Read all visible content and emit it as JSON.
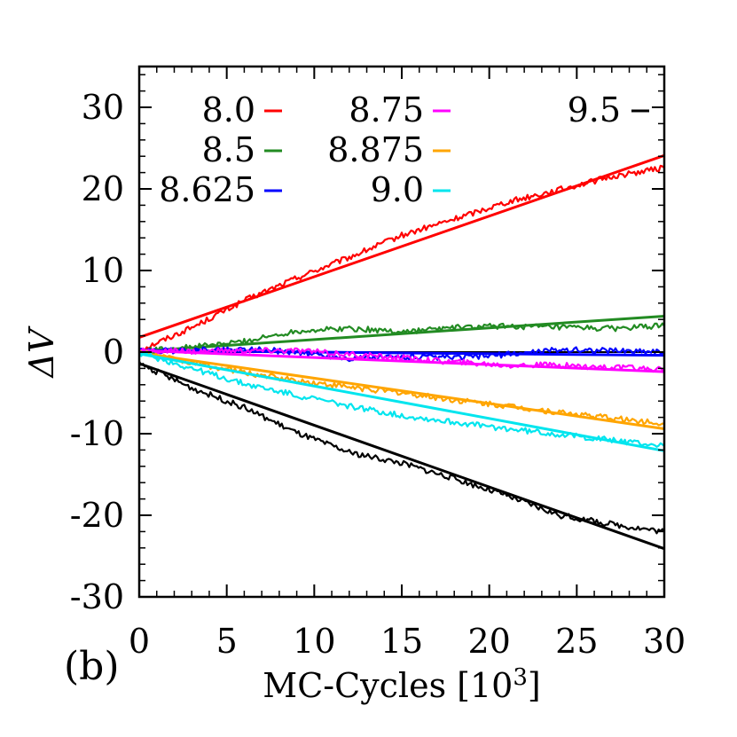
{
  "chart_data": {
    "type": "line",
    "panel_label": "(b)",
    "xlabel": "MC-Cycles [10",
    "xlabel_sup": "3",
    "xlabel_suffix": "]",
    "ylabel": "ΔV",
    "xlim": [
      0,
      30
    ],
    "ylim": [
      -30,
      35
    ],
    "x_ticks": [
      0,
      5,
      10,
      15,
      20,
      25,
      30
    ],
    "x_tick_labels": [
      "0",
      "5",
      "10",
      "15",
      "20",
      "25",
      "30"
    ],
    "y_ticks": [
      -30,
      -20,
      -10,
      0,
      10,
      20,
      30
    ],
    "y_tick_labels": [
      "-30",
      "-20",
      "-10",
      "0",
      "10",
      "20",
      "30"
    ],
    "zero_line": true,
    "grid": false,
    "legend_placement": "top, three columns",
    "series": [
      {
        "name": "8.0",
        "color": "#ff0000",
        "fit": {
          "x": [
            0,
            30
          ],
          "y": [
            1.8,
            24.1
          ]
        },
        "data": {
          "x": [
            0,
            3,
            6,
            9,
            12,
            15,
            18,
            21,
            24,
            27,
            30
          ],
          "y": [
            0.2,
            3.0,
            6.3,
            9.1,
            11.6,
            14.3,
            16.3,
            18.4,
            19.9,
            21.5,
            22.6
          ]
        }
      },
      {
        "name": "8.5",
        "color": "#228b22",
        "fit": {
          "x": [
            0,
            30
          ],
          "y": [
            0.1,
            4.4
          ]
        },
        "data": {
          "x": [
            0,
            3,
            6,
            9,
            12,
            15,
            18,
            21,
            24,
            27,
            30
          ],
          "y": [
            0.1,
            0.6,
            1.3,
            2.6,
            2.9,
            2.5,
            3.0,
            3.2,
            3.0,
            2.9,
            3.2
          ]
        }
      },
      {
        "name": "8.625",
        "color": "#0000ff",
        "fit": {
          "x": [
            0,
            30
          ],
          "y": [
            0.2,
            -0.4
          ]
        },
        "data": {
          "x": [
            0,
            3,
            6,
            9,
            12,
            15,
            18,
            21,
            24,
            27,
            30
          ],
          "y": [
            0.1,
            0.2,
            0.4,
            0.0,
            -0.8,
            -0.6,
            -0.7,
            -0.3,
            0.3,
            0.2,
            0.1
          ]
        }
      },
      {
        "name": "8.75",
        "color": "#ff00ff",
        "fit": {
          "x": [
            0,
            30
          ],
          "y": [
            0.2,
            -2.4
          ]
        },
        "data": {
          "x": [
            0,
            3,
            6,
            9,
            12,
            15,
            18,
            21,
            24,
            27,
            30
          ],
          "y": [
            0.1,
            0.1,
            0.2,
            0.2,
            -0.3,
            -0.7,
            -1.2,
            -1.6,
            -1.6,
            -1.9,
            -2.1
          ]
        }
      },
      {
        "name": "8.875",
        "color": "#ffa500",
        "fit": {
          "x": [
            0,
            30
          ],
          "y": [
            -0.1,
            -9.4
          ]
        },
        "data": {
          "x": [
            0,
            3,
            6,
            9,
            12,
            15,
            18,
            21,
            24,
            27,
            30
          ],
          "y": [
            0.0,
            -1.3,
            -2.5,
            -3.5,
            -4.3,
            -5.0,
            -5.9,
            -6.6,
            -7.4,
            -8.1,
            -8.8
          ]
        }
      },
      {
        "name": "9.0",
        "color": "#00e5ee",
        "fit": {
          "x": [
            0,
            30
          ],
          "y": [
            -0.2,
            -12.1
          ]
        },
        "data": {
          "x": [
            0,
            3,
            6,
            9,
            12,
            15,
            18,
            21,
            24,
            27,
            30
          ],
          "y": [
            -0.1,
            -2.0,
            -3.9,
            -5.3,
            -6.6,
            -7.8,
            -8.6,
            -9.4,
            -10.1,
            -10.8,
            -11.5
          ]
        }
      },
      {
        "name": "9.5",
        "color": "#000000",
        "fit": {
          "x": [
            0,
            30
          ],
          "y": [
            -1.4,
            -24.1
          ]
        },
        "data": {
          "x": [
            0,
            3,
            6,
            9,
            12,
            15,
            18,
            21,
            24,
            27,
            30
          ],
          "y": [
            -1.4,
            -4.4,
            -6.8,
            -9.9,
            -12.3,
            -13.6,
            -15.5,
            -17.6,
            -20.0,
            -21.1,
            -22.0
          ]
        }
      }
    ]
  }
}
